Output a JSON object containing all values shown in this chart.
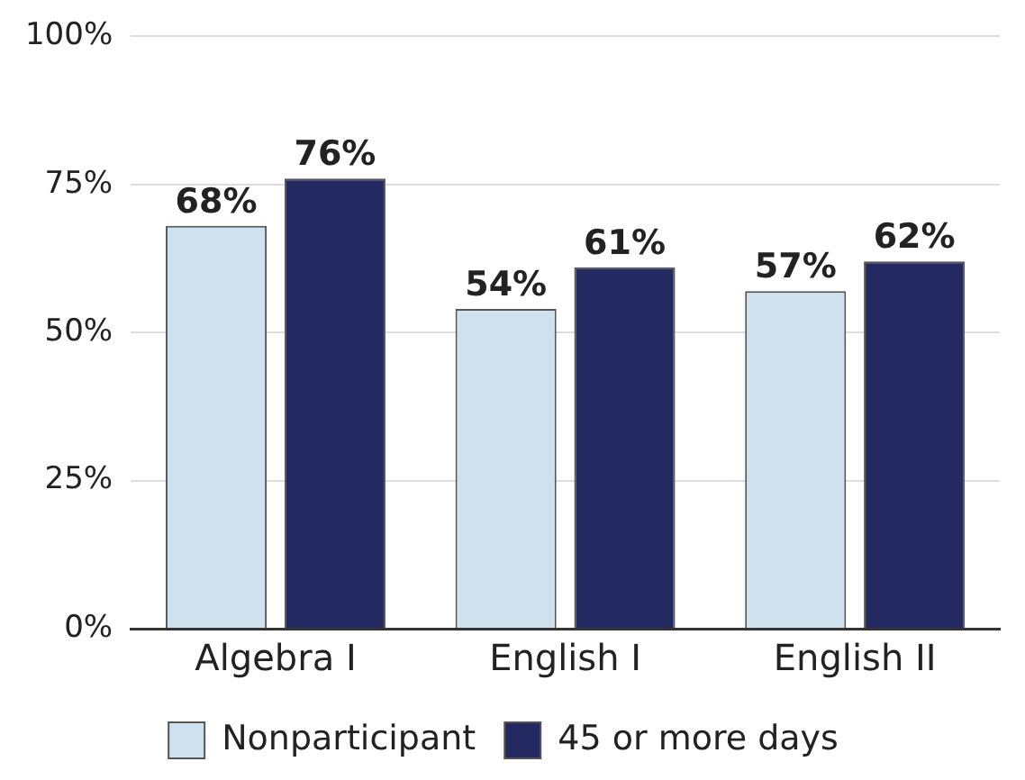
{
  "chart_data": {
    "type": "bar",
    "categories": [
      "Algebra I",
      "English I",
      "English II"
    ],
    "series": [
      {
        "name": "Nonparticipant",
        "color": "#cfe1ef",
        "values": [
          68,
          54,
          57
        ],
        "value_labels": [
          "68%",
          "54%",
          "57%"
        ]
      },
      {
        "name": "45 or more days",
        "color": "#232a62",
        "values": [
          76,
          61,
          62
        ],
        "value_labels": [
          "76%",
          "61%",
          "62%"
        ]
      }
    ],
    "ylim": [
      0,
      100
    ],
    "yticks": [
      {
        "value": 0,
        "label": "0%"
      },
      {
        "value": 25,
        "label": "25%"
      },
      {
        "value": 50,
        "label": "50%"
      },
      {
        "value": 75,
        "label": "75%"
      },
      {
        "value": 100,
        "label": "100%"
      }
    ],
    "grid": "y",
    "legend": "bottom"
  }
}
